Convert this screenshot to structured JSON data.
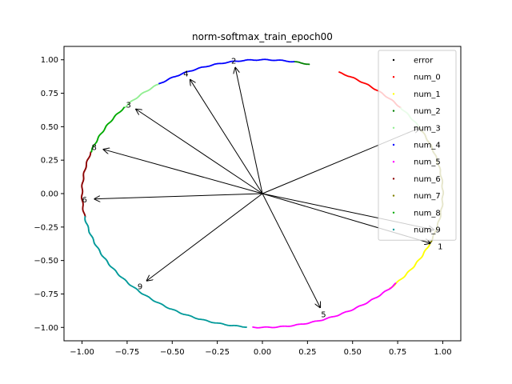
{
  "chart_data": {
    "type": "scatter",
    "title": "norm-softmax_train_epoch00",
    "xlabel": "",
    "ylabel": "",
    "xlim": [
      -1.1,
      1.1
    ],
    "ylim": [
      -1.1,
      1.1
    ],
    "xticks": [
      -1.0,
      -0.75,
      -0.5,
      -0.25,
      0.0,
      0.25,
      0.5,
      0.75,
      1.0
    ],
    "xtick_labels": [
      "−1.00",
      "−0.75",
      "−0.50",
      "−0.25",
      "0.00",
      "0.25",
      "0.50",
      "0.75",
      "1.00"
    ],
    "yticks": [
      1.0,
      0.75,
      0.5,
      0.25,
      0.0,
      -0.25,
      -0.5,
      -0.75,
      -1.0
    ],
    "ytick_labels": [
      "1.00",
      "0.75",
      "0.50",
      "0.25",
      "0.00",
      "−0.25",
      "−0.50",
      "−0.75",
      "−1.00"
    ],
    "grid": false,
    "legend_position": "top-right",
    "series": [
      {
        "name": "error",
        "color": "#000000",
        "arcs": []
      },
      {
        "name": "num_0",
        "color": "#ff0000",
        "arcs": [
          [
            65,
            40
          ]
        ]
      },
      {
        "name": "num_1",
        "color": "#ffff00",
        "arcs": [
          [
            -22,
            -45
          ]
        ]
      },
      {
        "name": "num_2",
        "color": "#008000",
        "arcs": [
          [
            80,
            75
          ]
        ]
      },
      {
        "name": "num_3",
        "color": "#90ee90",
        "arcs": [
          [
            140,
            125
          ],
          [
            40,
            30
          ]
        ]
      },
      {
        "name": "num_4",
        "color": "#0000ff",
        "arcs": [
          [
            125,
            80
          ]
        ]
      },
      {
        "name": "num_5",
        "color": "#ff00ff",
        "arcs": [
          [
            -42,
            -93
          ]
        ]
      },
      {
        "name": "num_6",
        "color": "#8b0000",
        "arcs": [
          [
            190,
            162
          ]
        ]
      },
      {
        "name": "num_7",
        "color": "#808000",
        "arcs": [
          [
            30,
            -22
          ]
        ]
      },
      {
        "name": "num_8",
        "color": "#00aa00",
        "arcs": [
          [
            162,
            140
          ]
        ]
      },
      {
        "name": "num_9",
        "color": "#009999",
        "arcs": [
          [
            265,
            190
          ]
        ]
      }
    ],
    "arrows": [
      {
        "label": "1",
        "x": 0.93,
        "y": -0.37
      },
      {
        "label": "2",
        "x": -0.15,
        "y": 0.94
      },
      {
        "label": "3",
        "x": -0.7,
        "y": 0.63
      },
      {
        "label": "4",
        "x": -0.4,
        "y": 0.85
      },
      {
        "label": "5",
        "x": 0.32,
        "y": -0.85
      },
      {
        "label": "6",
        "x": -0.93,
        "y": -0.04
      },
      {
        "label": "8",
        "x": -0.88,
        "y": 0.33
      },
      {
        "label": "9",
        "x": -0.64,
        "y": -0.65
      },
      {
        "label": "",
        "x": 0.87,
        "y": 0.49
      },
      {
        "label": "",
        "x": 0.95,
        "y": -0.27
      }
    ]
  }
}
